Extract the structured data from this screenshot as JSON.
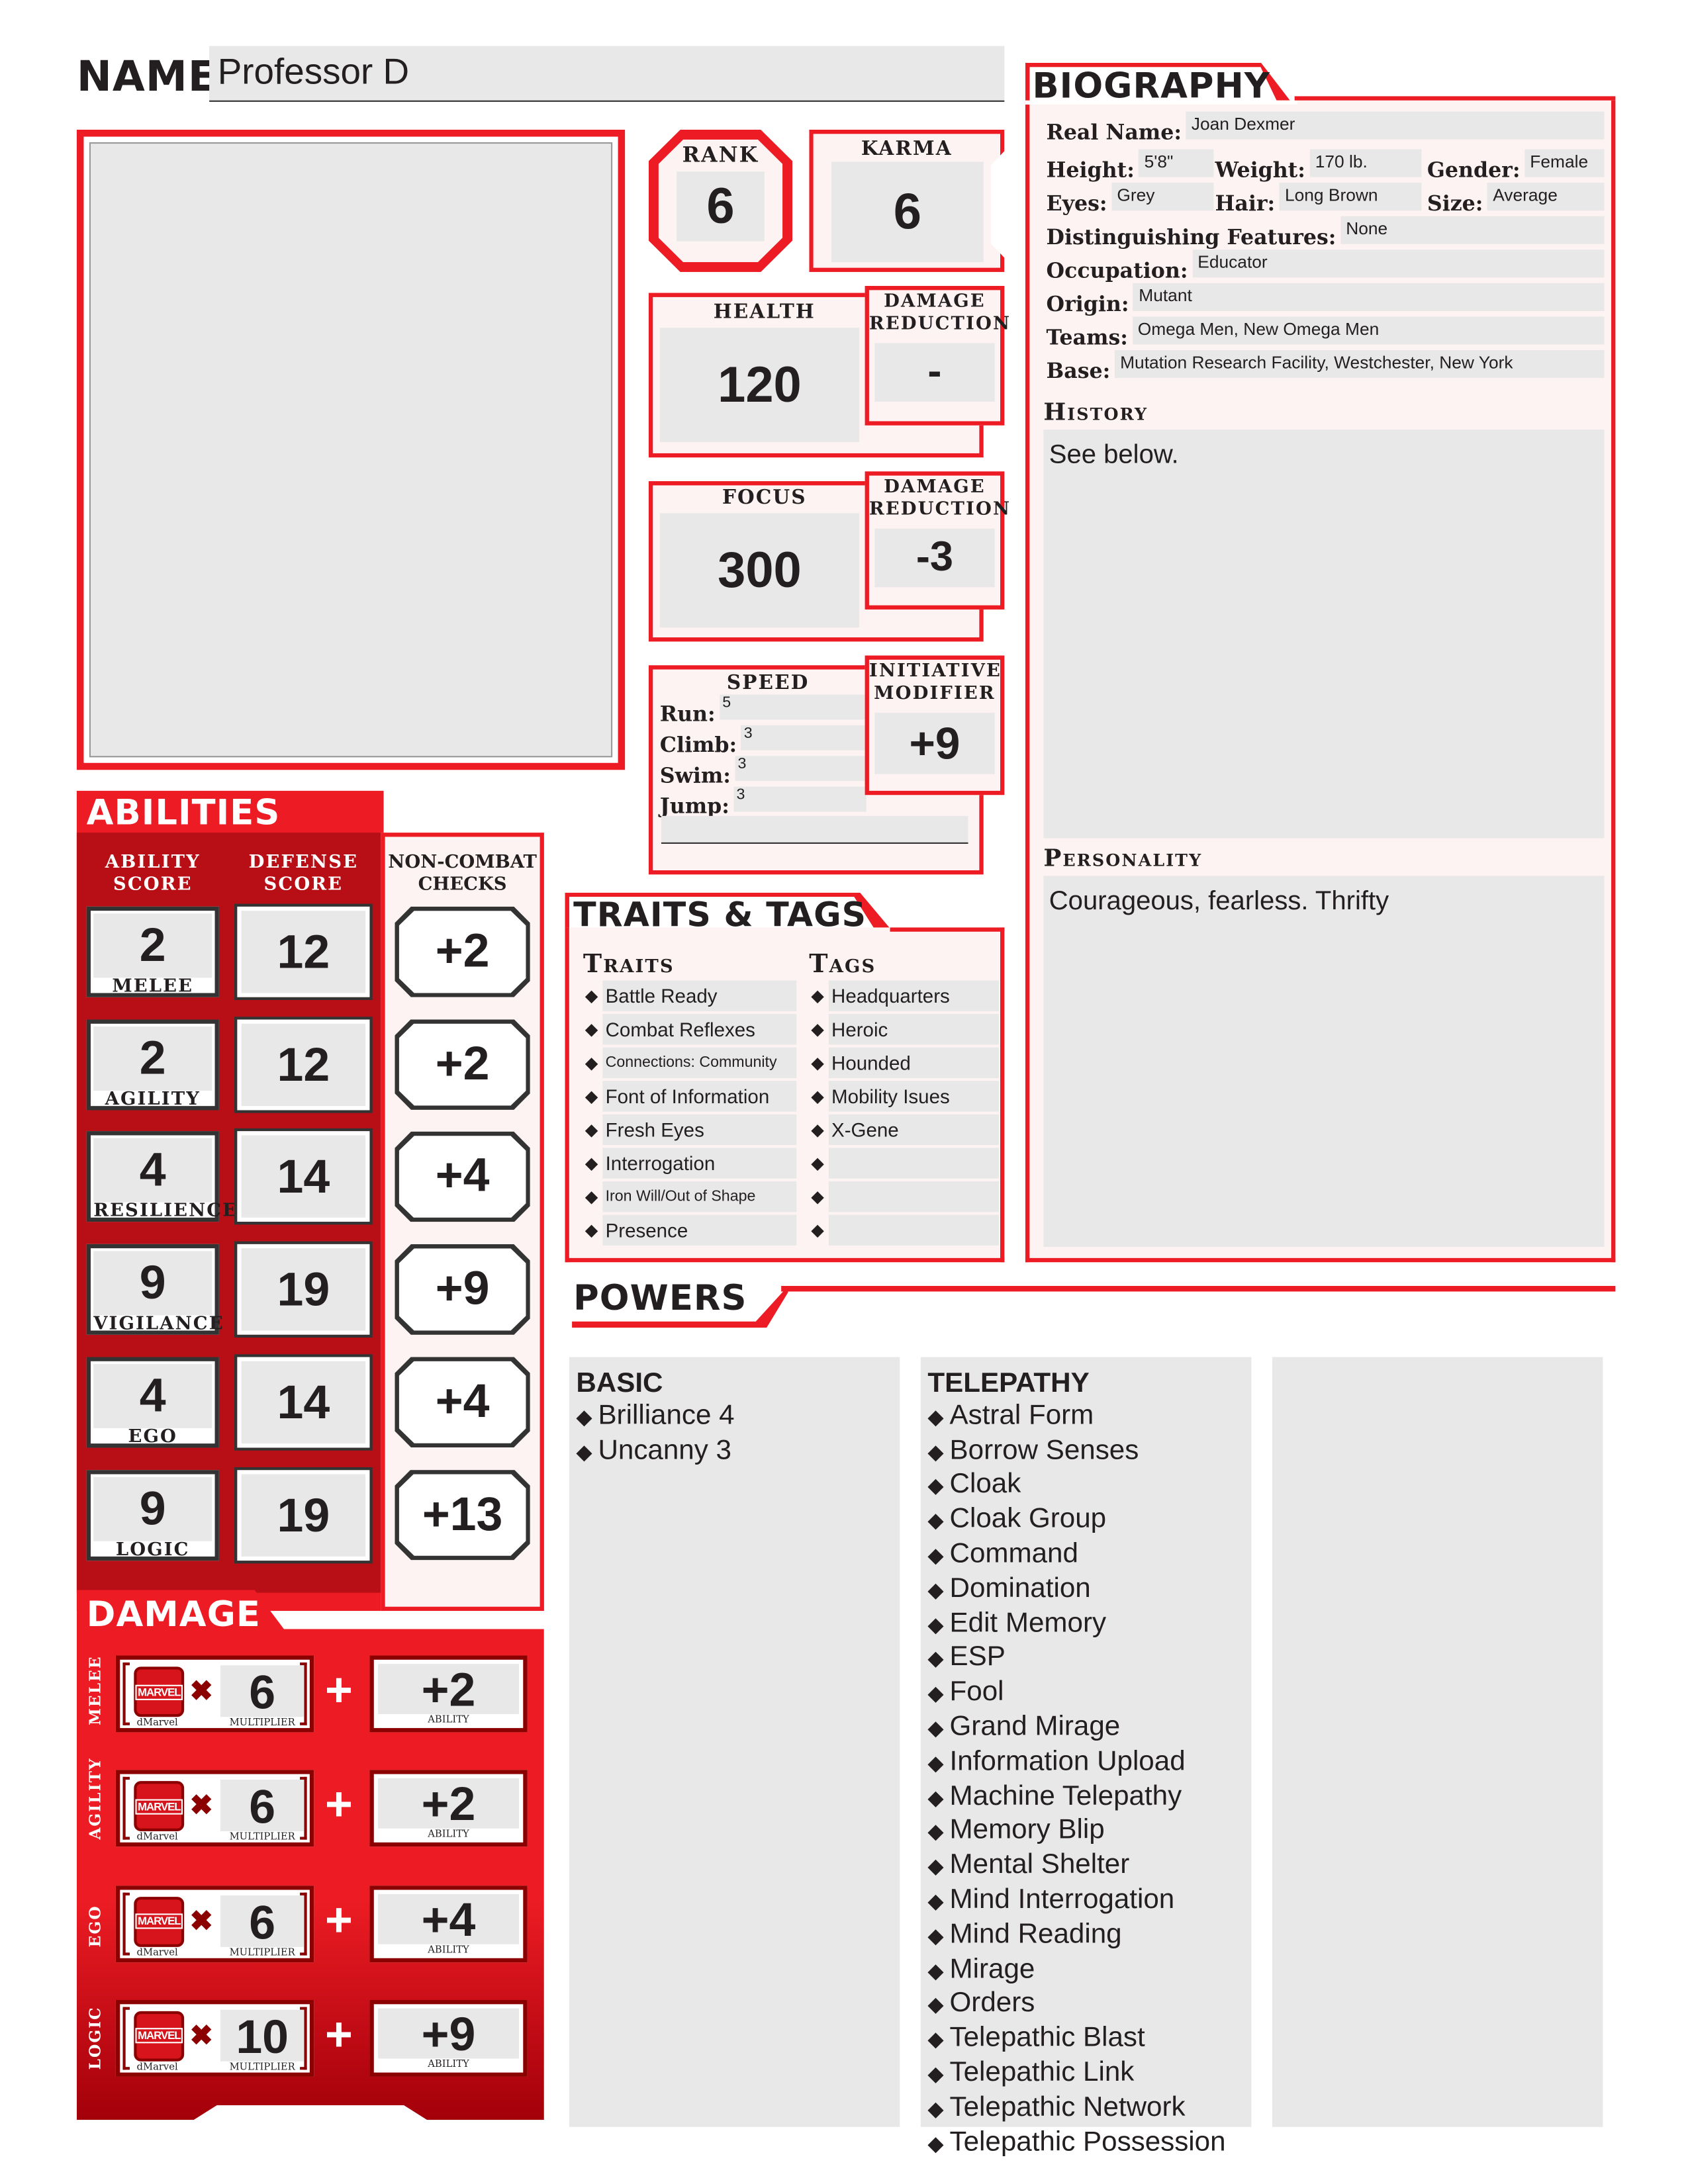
{
  "name": {
    "label": "NAME",
    "value": "Professor D"
  },
  "rank": {
    "label": "RANK",
    "value": "6"
  },
  "karma": {
    "label": "KARMA",
    "value": "6"
  },
  "health": {
    "label": "HEALTH",
    "value": "120",
    "dr_label": "DAMAGE REDUCTION",
    "dr_value": "-"
  },
  "focus": {
    "label": "FOCUS",
    "value": "300",
    "dr_label": "DAMAGE REDUCTION",
    "dr_value": "-3"
  },
  "speed": {
    "label": "SPEED",
    "items": [
      {
        "k": "Run:",
        "v": "5"
      },
      {
        "k": "Climb:",
        "v": "3"
      },
      {
        "k": "Swim:",
        "v": "3"
      },
      {
        "k": "Jump:",
        "v": "3"
      }
    ]
  },
  "initiative": {
    "label": "INITIATIVE MODIFIER",
    "value": "+9"
  },
  "biography": {
    "title": "BIOGRAPHY",
    "real_name": {
      "k": "Real Name:",
      "v": "Joan Dexmer"
    },
    "height": {
      "k": "Height:",
      "v": "5'8\""
    },
    "weight": {
      "k": "Weight:",
      "v": "170 lb."
    },
    "gender": {
      "k": "Gender:",
      "v": "Female"
    },
    "eyes": {
      "k": "Eyes:",
      "v": "Grey"
    },
    "hair": {
      "k": "Hair:",
      "v": "Long Brown"
    },
    "size": {
      "k": "Size:",
      "v": "Average"
    },
    "features": {
      "k": "Distinguishing Features:",
      "v": "None"
    },
    "occupation": {
      "k": "Occupation:",
      "v": "Educator"
    },
    "origin": {
      "k": "Origin:",
      "v": "Mutant"
    },
    "teams": {
      "k": "Teams:",
      "v": "Omega Men, New Omega Men"
    },
    "base": {
      "k": "Base:",
      "v": "Mutation Research Facility, Westchester, New York"
    },
    "history_label": "History",
    "history": "See below.",
    "personality_label": "Personality",
    "personality": "Courageous, fearless. Thrifty"
  },
  "abilities": {
    "title": "ABILITIES",
    "col1": "ABILITY SCORE",
    "col2": "DEFENSE SCORE",
    "col3": "NON-COMBAT CHECKS",
    "rows": [
      {
        "name": "MELEE",
        "score": "2",
        "defense": "12",
        "check": "+2"
      },
      {
        "name": "AGILITY",
        "score": "2",
        "defense": "12",
        "check": "+2"
      },
      {
        "name": "RESILIENCE",
        "score": "4",
        "defense": "14",
        "check": "+4"
      },
      {
        "name": "VIGILANCE",
        "score": "9",
        "defense": "19",
        "check": "+9"
      },
      {
        "name": "EGO",
        "score": "4",
        "defense": "14",
        "check": "+4"
      },
      {
        "name": "LOGIC",
        "score": "9",
        "defense": "19",
        "check": "+13"
      }
    ]
  },
  "damage": {
    "title": "DAMAGE",
    "die_label": "dMarvel",
    "logo": "MARVEL",
    "mult_label": "MULTIPLIER",
    "ability_label": "ABILITY",
    "rows": [
      {
        "name": "MELEE",
        "mult": "6",
        "ability": "+2"
      },
      {
        "name": "AGILITY",
        "mult": "6",
        "ability": "+2"
      },
      {
        "name": "EGO",
        "mult": "6",
        "ability": "+4"
      },
      {
        "name": "LOGIC",
        "mult": "10",
        "ability": "+9"
      }
    ]
  },
  "traits_tags": {
    "title": "TRAITS & TAGS",
    "traits_label": "Traits",
    "tags_label": "Tags",
    "traits": [
      "Battle Ready",
      "Combat Reflexes",
      "Connections: Community",
      "Font of Information",
      "Fresh Eyes",
      "Interrogation",
      "Iron Will/Out of Shape",
      "Presence"
    ],
    "tags": [
      "Headquarters",
      "Heroic",
      "Hounded",
      "Mobility Isues",
      "X-Gene",
      "",
      "",
      ""
    ]
  },
  "powers": {
    "title": "POWERS",
    "columns": [
      {
        "heading": "BASIC",
        "items": [
          "Brilliance 4",
          "Uncanny 3"
        ]
      },
      {
        "heading": "TELEPATHY",
        "items": [
          "Astral Form",
          "Borrow Senses",
          "Cloak",
          "Cloak Group",
          "Command",
          "Domination",
          "Edit Memory",
          "ESP",
          "Fool",
          "Grand Mirage",
          "Information Upload",
          "Machine Telepathy",
          "Memory Blip",
          "Mental Shelter",
          "Mind Interrogation",
          "Mind Reading",
          "Mirage",
          "Orders",
          "Telepathic Blast",
          "Telepathic Link",
          "Telepathic Network",
          "Telepathic Possession"
        ]
      },
      {
        "heading": "",
        "items": []
      }
    ]
  },
  "colors": {
    "accent": "#ed1c24",
    "dark": "#8b0000",
    "panel": "#fdf3f2",
    "field": "#e8e8e8"
  },
  "icons": {
    "bullet": "diamond-icon",
    "die": "marvel-die-icon",
    "times": "times-icon",
    "plus": "plus-icon"
  }
}
